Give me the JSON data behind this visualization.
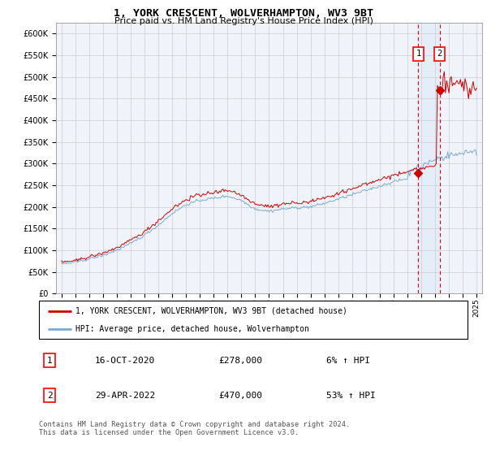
{
  "title": "1, YORK CRESCENT, WOLVERHAMPTON, WV3 9BT",
  "subtitle": "Price paid vs. HM Land Registry's House Price Index (HPI)",
  "hpi_color": "#7aaad4",
  "price_color": "#cc0000",
  "background_color": "#ffffff",
  "grid_color": "#cccccc",
  "ylim": [
    0,
    625000
  ],
  "yticks": [
    0,
    50000,
    100000,
    150000,
    200000,
    250000,
    300000,
    350000,
    400000,
    450000,
    500000,
    550000,
    600000
  ],
  "ytick_labels": [
    "£0",
    "£50K",
    "£100K",
    "£150K",
    "£200K",
    "£250K",
    "£300K",
    "£350K",
    "£400K",
    "£450K",
    "£500K",
    "£550K",
    "£600K"
  ],
  "transaction1": {
    "date": "16-OCT-2020",
    "year": 2020.79,
    "price": 278000,
    "label": "1",
    "hpi_pct": "6% ↑ HPI"
  },
  "transaction2": {
    "date": "29-APR-2022",
    "year": 2022.33,
    "price": 470000,
    "label": "2",
    "hpi_pct": "53% ↑ HPI"
  },
  "legend_label_red": "1, YORK CRESCENT, WOLVERHAMPTON, WV3 9BT (detached house)",
  "legend_label_blue": "HPI: Average price, detached house, Wolverhampton",
  "footer": "Contains HM Land Registry data © Crown copyright and database right 2024.\nThis data is licensed under the Open Government Licence v3.0.",
  "xtick_start": 1995,
  "xtick_end": 2025,
  "xlim_start": 1994.6,
  "xlim_end": 2025.4
}
